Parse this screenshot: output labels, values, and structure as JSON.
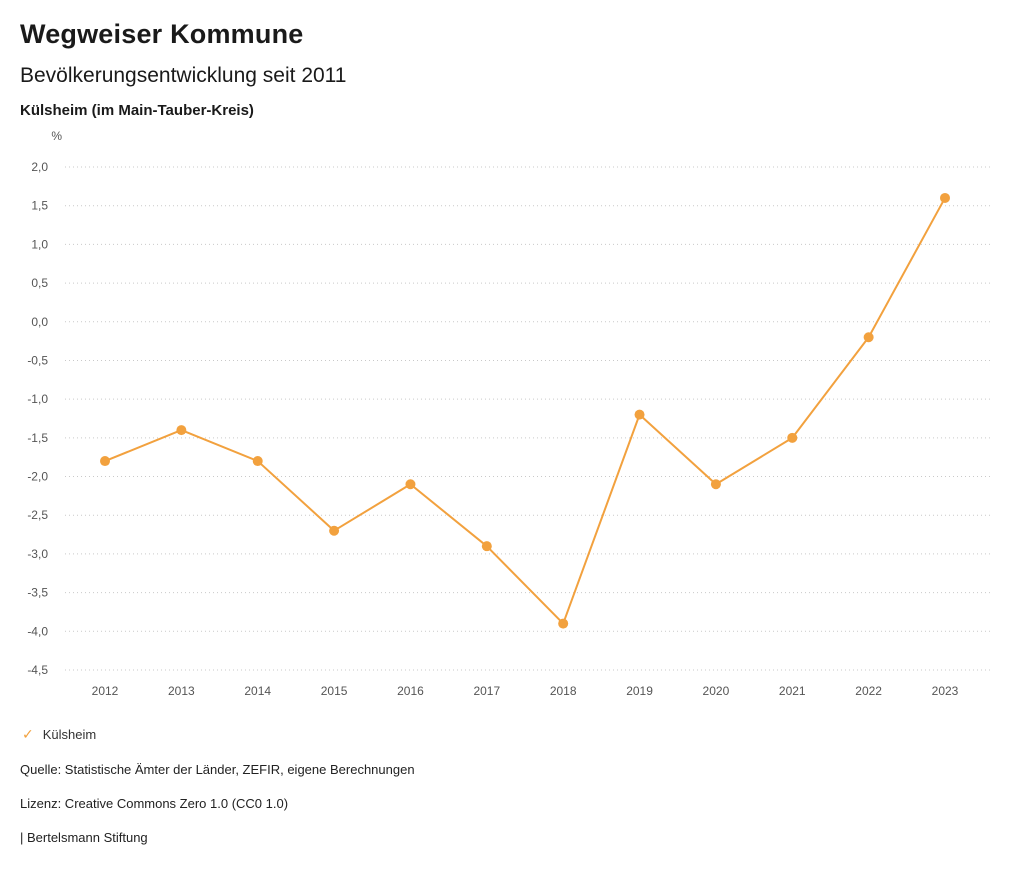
{
  "header": {
    "title": "Wegweiser Kommune",
    "subtitle": "Bevölkerungsentwicklung seit 2011",
    "region": "Külsheim (im Main-Tauber-Kreis)"
  },
  "chart_data": {
    "type": "line",
    "title": "Bevölkerungsentwicklung seit 2011",
    "unit_label": "%",
    "categories": [
      "2012",
      "2013",
      "2014",
      "2015",
      "2016",
      "2017",
      "2018",
      "2019",
      "2020",
      "2021",
      "2022",
      "2023"
    ],
    "series": [
      {
        "name": "Külsheim",
        "color": "#F2A13E",
        "values": [
          -1.8,
          -1.4,
          -1.8,
          -2.7,
          -2.1,
          -2.9,
          -3.9,
          -1.2,
          -2.1,
          -1.5,
          -0.2,
          1.6
        ]
      }
    ],
    "ylim": [
      -4.5,
      2.0
    ],
    "ytick_step": 0.5,
    "decimal_separator": ",",
    "grid": "dotted-horizontal",
    "legend_position": "bottom-left"
  },
  "legend": {
    "items": [
      {
        "label": "Külsheim",
        "color": "#F2A13E",
        "icon": "check"
      }
    ]
  },
  "footer": {
    "source": "Quelle: Statistische Ämter der Länder, ZEFIR, eigene Berechnungen",
    "license": "Lizenz: Creative Commons Zero 1.0 (CC0 1.0)",
    "attribution": "| Bertelsmann Stiftung"
  }
}
